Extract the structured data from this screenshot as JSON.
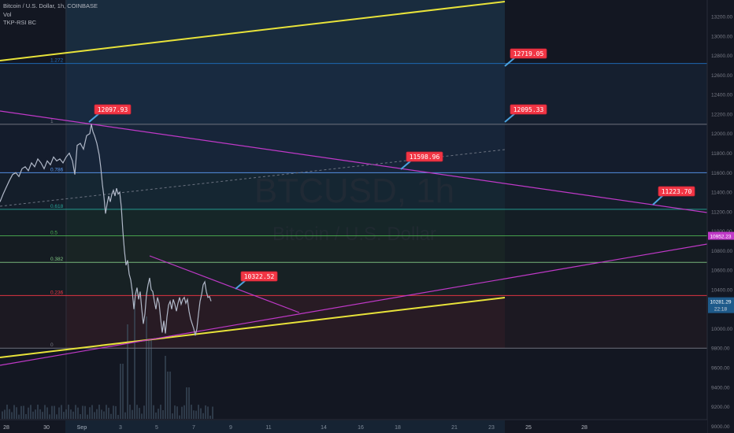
{
  "header": {
    "symbol_line": "Bitcoin / U.S. Dollar, 1h, COINBASE",
    "vol_label": "Vol",
    "indicator_label": "TKP-RSI BC"
  },
  "watermark": {
    "ticker": "BTCUSD, 1h",
    "name": "Bitcoin / U.S. Dollar"
  },
  "chart_data": {
    "type": "line",
    "xlabel": "",
    "ylabel": "",
    "x_tick_labels": [
      "28",
      "30",
      "Sep",
      "3",
      "5",
      "7",
      "9",
      "11",
      "14",
      "16",
      "18",
      "21",
      "23",
      "25",
      "28"
    ],
    "y_ticks": [
      9000,
      9200,
      9400,
      9600,
      9800,
      10000,
      10200,
      10400,
      10600,
      10800,
      11000,
      11200,
      11400,
      11600,
      11800,
      12000,
      12200,
      12400,
      12600,
      12800,
      13000,
      13200
    ],
    "ylim": [
      8930,
      13370
    ],
    "fib_levels": [
      {
        "label": "1.272",
        "price": 12719.05,
        "color": "#1e6fbf"
      },
      {
        "label": "1",
        "price": 12095.33,
        "color": "#787b86"
      },
      {
        "label": "0.786",
        "price": 11598.96,
        "color": "#5b9cf6"
      },
      {
        "label": "0.618",
        "price": 11223.7,
        "color": "#26a69a"
      },
      {
        "label": "0.5",
        "price": 10952,
        "color": "#4caf50"
      },
      {
        "label": "0.382",
        "price": 10680,
        "color": "#81c784"
      },
      {
        "label": "0.236",
        "price": 10340,
        "color": "#f23645"
      },
      {
        "label": "0",
        "price": 9800,
        "color": "#787b86"
      }
    ],
    "price_callouts": [
      "12719.05",
      "12097.93",
      "12095.33",
      "11598.96",
      "11223.70",
      "10322.52"
    ],
    "axis_markers": {
      "level_0_5": "10952.23",
      "last_price": "10281.29",
      "countdown": "22:18"
    },
    "price_series": [
      [
        0,
        11300
      ],
      [
        4,
        11380
      ],
      [
        8,
        11450
      ],
      [
        12,
        11520
      ],
      [
        16,
        11580
      ],
      [
        20,
        11600
      ],
      [
        24,
        11560
      ],
      [
        28,
        11640
      ],
      [
        32,
        11660
      ],
      [
        36,
        11620
      ],
      [
        40,
        11700
      ],
      [
        44,
        11660
      ],
      [
        48,
        11740
      ],
      [
        52,
        11700
      ],
      [
        56,
        11640
      ],
      [
        60,
        11720
      ],
      [
        64,
        11680
      ],
      [
        68,
        11760
      ],
      [
        72,
        11720
      ],
      [
        76,
        11740
      ],
      [
        80,
        11700
      ],
      [
        84,
        11760
      ],
      [
        88,
        11800
      ],
      [
        92,
        11720
      ],
      [
        95,
        11580
      ],
      [
        98,
        11880
      ],
      [
        102,
        11900
      ],
      [
        106,
        11840
      ],
      [
        110,
        11980
      ],
      [
        114,
        12000
      ],
      [
        116,
        12098
      ],
      [
        118,
        12020
      ],
      [
        120,
        11980
      ],
      [
        123,
        11900
      ],
      [
        126,
        11780
      ],
      [
        128,
        11650
      ],
      [
        130,
        11480
      ],
      [
        132,
        11350
      ],
      [
        134,
        11180
      ],
      [
        136,
        11280
      ],
      [
        138,
        11360
      ],
      [
        140,
        11300
      ],
      [
        142,
        11380
      ],
      [
        144,
        11420
      ],
      [
        146,
        11360
      ],
      [
        148,
        11440
      ],
      [
        150,
        11380
      ],
      [
        152,
        11400
      ],
      [
        154,
        11250
      ],
      [
        156,
        11000
      ],
      [
        158,
        10800
      ],
      [
        160,
        10650
      ],
      [
        162,
        10700
      ],
      [
        164,
        10560
      ],
      [
        166,
        10500
      ],
      [
        168,
        10380
      ],
      [
        170,
        10200
      ],
      [
        172,
        10350
      ],
      [
        174,
        10420
      ],
      [
        176,
        10300
      ],
      [
        178,
        10380
      ],
      [
        180,
        10200
      ],
      [
        182,
        10050
      ],
      [
        184,
        10150
      ],
      [
        186,
        10350
      ],
      [
        188,
        10450
      ],
      [
        190,
        10520
      ],
      [
        192,
        10400
      ],
      [
        194,
        10380
      ],
      [
        196,
        10280
      ],
      [
        198,
        10200
      ],
      [
        200,
        10320
      ],
      [
        202,
        10260
      ],
      [
        204,
        10100
      ],
      [
        206,
        9960
      ],
      [
        208,
        10080
      ],
      [
        210,
        9950
      ],
      [
        212,
        10120
      ],
      [
        214,
        10240
      ],
      [
        216,
        10280
      ],
      [
        218,
        10200
      ],
      [
        220,
        10300
      ],
      [
        222,
        10250
      ],
      [
        224,
        10180
      ],
      [
        226,
        10260
      ],
      [
        228,
        10320
      ],
      [
        230,
        10250
      ],
      [
        232,
        10300
      ],
      [
        234,
        10320
      ],
      [
        236,
        10260
      ],
      [
        238,
        10300
      ],
      [
        240,
        10180
      ],
      [
        242,
        10100
      ],
      [
        244,
        10050
      ],
      [
        246,
        10000
      ],
      [
        248,
        9930
      ],
      [
        250,
        10000
      ],
      [
        252,
        10150
      ],
      [
        254,
        10280
      ],
      [
        256,
        10350
      ],
      [
        258,
        10450
      ],
      [
        260,
        10480
      ],
      [
        262,
        10380
      ],
      [
        264,
        10320
      ],
      [
        266,
        10330
      ],
      [
        268,
        10281
      ]
    ]
  }
}
